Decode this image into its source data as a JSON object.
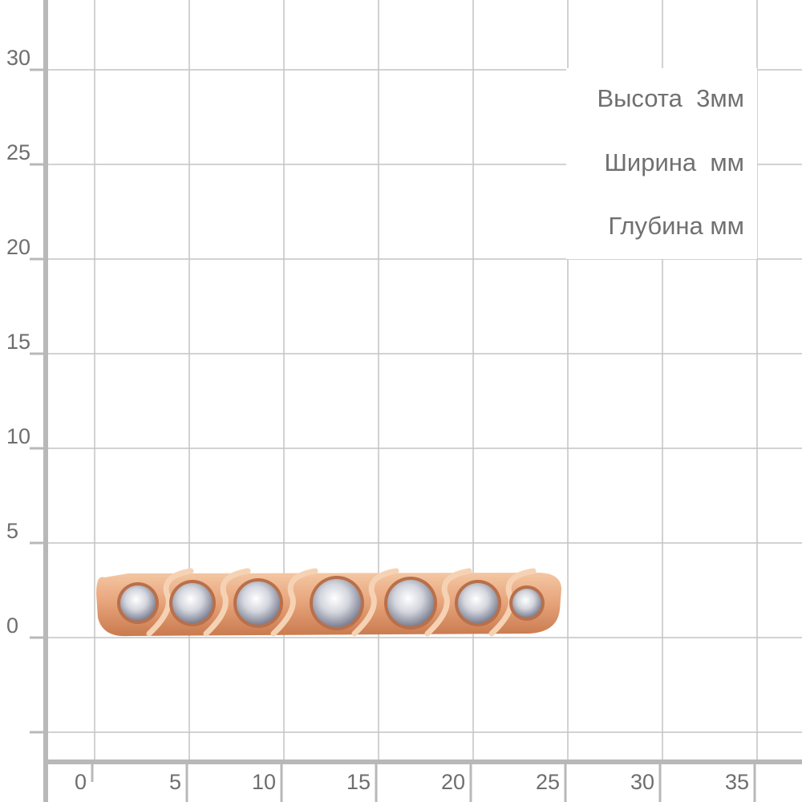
{
  "y_axis": {
    "tick_labels": [
      "30",
      "25",
      "20",
      "15",
      "10",
      "5",
      "0"
    ]
  },
  "x_axis": {
    "tick_labels": [
      "0",
      "5",
      "10",
      "15",
      "20",
      "25",
      "30",
      "35"
    ]
  },
  "dimensions": {
    "height": "Высота  3мм",
    "width": "Ширина  мм",
    "depth": "Глубина мм"
  },
  "product": {
    "type": "ring",
    "stone_count": 7,
    "metal_color": "#e6a57e",
    "stone_color": "#c9ccd6"
  },
  "colors": {
    "grid": "#c4c4c4",
    "axis": "#b8b8b8",
    "text": "#6e6e6e"
  }
}
